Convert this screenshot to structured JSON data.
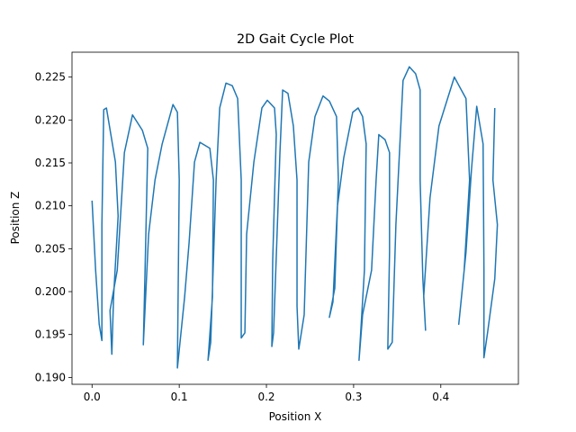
{
  "chart_data": {
    "type": "line",
    "title": "2D Gait Cycle Plot",
    "xlabel": "Position X",
    "ylabel": "Position Z",
    "x": [
      0,
      0.0041,
      0.0082,
      0.0113,
      0.0113,
      0.0134,
      0.0165,
      0.0268,
      0.0299,
      0.0247,
      0.0227,
      0.0206,
      0.0289,
      0.0371,
      0.0464,
      0.0577,
      0.0639,
      0.0608,
      0.0588,
      0.0649,
      0.0722,
      0.0804,
      0.0928,
      0.0979,
      0.1,
      0.0979,
      0.1062,
      0.1113,
      0.1175,
      0.1237,
      0.1351,
      0.1392,
      0.1381,
      0.133,
      0.1361,
      0.1423,
      0.1464,
      0.1536,
      0.1608,
      0.167,
      0.1711,
      0.1711,
      0.1753,
      0.1773,
      0.1856,
      0.1948,
      0.201,
      0.2093,
      0.2113,
      0.2072,
      0.2062,
      0.2082,
      0.2155,
      0.2186,
      0.2247,
      0.2309,
      0.2351,
      0.2351,
      0.2371,
      0.2433,
      0.2485,
      0.2557,
      0.2649,
      0.2722,
      0.2804,
      0.2825,
      0.2784,
      0.2722,
      0.2763,
      0.2814,
      0.2887,
      0.299,
      0.3052,
      0.3103,
      0.3144,
      0.3124,
      0.3062,
      0.3103,
      0.3206,
      0.3258,
      0.3289,
      0.3361,
      0.3412,
      0.3412,
      0.3392,
      0.3443,
      0.3485,
      0.3567,
      0.3639,
      0.3711,
      0.3763,
      0.3763,
      0.3794,
      0.3825,
      0.3804,
      0.3876,
      0.3979,
      0.4155,
      0.4289,
      0.433,
      0.4268,
      0.4206,
      0.4289,
      0.4351,
      0.4412,
      0.4485,
      0.4495,
      0.4495,
      0.4536,
      0.4619,
      0.4649,
      0.4598,
      0.4619
    ],
    "y": [
      0.2106,
      0.2025,
      0.1962,
      0.1943,
      0.2078,
      0.2212,
      0.2214,
      0.2151,
      0.2088,
      0.1994,
      0.1927,
      0.1978,
      0.2025,
      0.2162,
      0.2206,
      0.2188,
      0.2167,
      0.2025,
      0.1938,
      0.2067,
      0.213,
      0.2172,
      0.2218,
      0.2209,
      0.213,
      0.1911,
      0.1994,
      0.2057,
      0.2151,
      0.2174,
      0.2167,
      0.213,
      0.1994,
      0.192,
      0.1941,
      0.213,
      0.2214,
      0.2243,
      0.224,
      0.2225,
      0.213,
      0.1946,
      0.1952,
      0.2067,
      0.2151,
      0.2214,
      0.2223,
      0.2214,
      0.2183,
      0.2036,
      0.1936,
      0.1952,
      0.2162,
      0.2235,
      0.2231,
      0.2193,
      0.213,
      0.1983,
      0.1933,
      0.1973,
      0.2151,
      0.2204,
      0.2228,
      0.2222,
      0.2204,
      0.213,
      0.2004,
      0.197,
      0.1988,
      0.2099,
      0.2156,
      0.2209,
      0.2214,
      0.2204,
      0.2172,
      0.2025,
      0.192,
      0.1973,
      0.2025,
      0.213,
      0.2183,
      0.2177,
      0.2162,
      0.2046,
      0.1933,
      0.1941,
      0.2078,
      0.2246,
      0.2262,
      0.2254,
      0.2235,
      0.213,
      0.2015,
      0.1955,
      0.1994,
      0.2109,
      0.2193,
      0.225,
      0.2225,
      0.213,
      0.2025,
      0.1962,
      0.2046,
      0.2141,
      0.2216,
      0.2172,
      0.2025,
      0.1923,
      0.1952,
      0.2015,
      0.2078,
      0.213,
      0.2214
    ],
    "color": "#1f77b4",
    "xlim": [
      -0.023,
      0.489
    ],
    "ylim": [
      0.1892,
      0.2279
    ],
    "xticks": [
      {
        "value": 0,
        "label": "0.0"
      },
      0.1,
      0.2,
      0.3,
      0.4
    ],
    "yticks": [
      {
        "value": 0.19,
        "label": "0.190"
      },
      {
        "value": 0.195,
        "label": "0.195"
      },
      {
        "value": 0.2,
        "label": "0.200"
      },
      {
        "value": 0.205,
        "label": "0.205"
      },
      {
        "value": 0.21,
        "label": "0.210"
      },
      {
        "value": 0.215,
        "label": "0.215"
      },
      {
        "value": 0.22,
        "label": "0.220"
      },
      {
        "value": 0.225,
        "label": "0.225"
      }
    ],
    "grid": false
  }
}
